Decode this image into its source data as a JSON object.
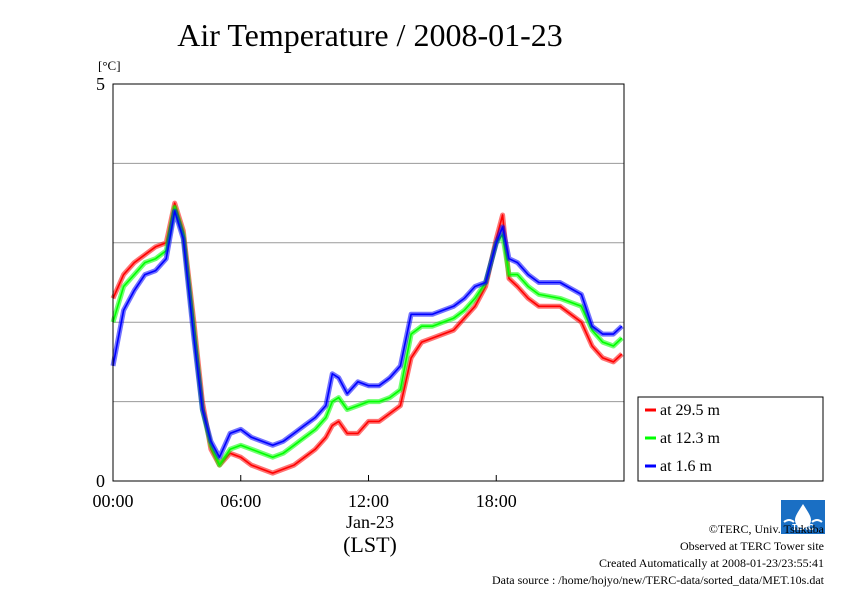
{
  "chart_data": {
    "type": "line",
    "title": "Air Temperature / 2008-01-23",
    "ylabel": "[°C]",
    "xlabel": "Jan-23",
    "xlabel2": "(LST)",
    "xlim": [
      0,
      24
    ],
    "ylim": [
      0,
      5
    ],
    "grid": true,
    "legend_position": "right",
    "x_ticks": [
      {
        "value": 0,
        "label": "00:00"
      },
      {
        "value": 6,
        "label": "06:00"
      },
      {
        "value": 12,
        "label": "12:00"
      },
      {
        "value": 18,
        "label": "18:00"
      }
    ],
    "y_ticks": [
      {
        "value": 0,
        "label": "0"
      },
      {
        "value": 5,
        "label": "5"
      }
    ],
    "y_grid": [
      1,
      2,
      3,
      4
    ],
    "x": [
      0,
      0.5,
      1,
      1.5,
      2,
      2.5,
      2.9,
      3.3,
      3.8,
      4.2,
      4.6,
      5.0,
      5.5,
      6.0,
      6.5,
      7.0,
      7.5,
      8.0,
      8.5,
      9.0,
      9.5,
      10.0,
      10.3,
      10.6,
      11.0,
      11.5,
      12.0,
      12.5,
      13.0,
      13.5,
      14.0,
      14.5,
      15.0,
      15.5,
      16.0,
      16.5,
      17.0,
      17.5,
      18.0,
      18.3,
      18.6,
      19.0,
      19.5,
      20.0,
      21.0,
      22.0,
      22.5,
      23.0,
      23.5,
      23.9
    ],
    "series": [
      {
        "name": "at 29.5 m",
        "color": "#ff0000",
        "values": [
          2.3,
          2.6,
          2.75,
          2.85,
          2.95,
          3.0,
          3.5,
          3.15,
          2.0,
          1.0,
          0.4,
          0.2,
          0.35,
          0.3,
          0.2,
          0.15,
          0.1,
          0.15,
          0.2,
          0.3,
          0.4,
          0.55,
          0.7,
          0.75,
          0.6,
          0.6,
          0.75,
          0.75,
          0.85,
          0.95,
          1.55,
          1.75,
          1.8,
          1.85,
          1.9,
          2.05,
          2.2,
          2.45,
          3.05,
          3.35,
          2.55,
          2.45,
          2.3,
          2.2,
          2.2,
          2.0,
          1.7,
          1.55,
          1.5,
          1.6
        ]
      },
      {
        "name": "at 12.3 m",
        "color": "#00ff00",
        "values": [
          2.0,
          2.45,
          2.6,
          2.75,
          2.8,
          2.9,
          3.45,
          3.1,
          1.9,
          0.9,
          0.45,
          0.2,
          0.4,
          0.45,
          0.4,
          0.35,
          0.3,
          0.35,
          0.45,
          0.55,
          0.65,
          0.8,
          1.0,
          1.05,
          0.9,
          0.95,
          1.0,
          1.0,
          1.05,
          1.15,
          1.85,
          1.95,
          1.95,
          2.0,
          2.05,
          2.15,
          2.3,
          2.5,
          3.0,
          3.1,
          2.6,
          2.6,
          2.45,
          2.35,
          2.3,
          2.2,
          1.9,
          1.75,
          1.7,
          1.8
        ]
      },
      {
        "name": "at 1.6 m",
        "color": "#0000ff",
        "values": [
          1.45,
          2.15,
          2.4,
          2.6,
          2.65,
          2.8,
          3.4,
          3.05,
          1.8,
          0.9,
          0.5,
          0.3,
          0.6,
          0.65,
          0.55,
          0.5,
          0.45,
          0.5,
          0.6,
          0.7,
          0.8,
          0.95,
          1.35,
          1.3,
          1.1,
          1.25,
          1.2,
          1.2,
          1.3,
          1.45,
          2.1,
          2.1,
          2.1,
          2.15,
          2.2,
          2.3,
          2.45,
          2.5,
          3.0,
          3.2,
          2.8,
          2.75,
          2.6,
          2.5,
          2.5,
          2.35,
          1.95,
          1.85,
          1.85,
          1.95
        ]
      }
    ]
  },
  "credits": {
    "copyright": "©TERC, Univ. Tsukuba",
    "observed": "Observed at TERC Tower site",
    "created": "Created Automatically at 2008-01-23/23:55:41",
    "source": "Data source : /home/hojyo/new/TERC-data/sorted_data/MET.10s.dat"
  },
  "logo": {
    "icon": "terc-logo",
    "text": "TERC",
    "color": "#1a6fc4"
  }
}
